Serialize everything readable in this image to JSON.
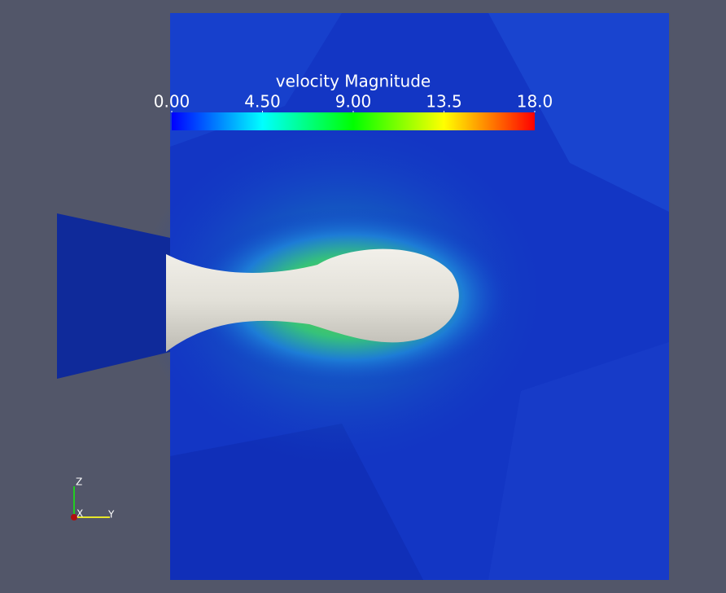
{
  "colorbar": {
    "title": "velocity Magnitude",
    "range": [
      0,
      18
    ],
    "ticks": [
      {
        "value": 0,
        "label": "0.00"
      },
      {
        "value": 4.5,
        "label": "4.50"
      },
      {
        "value": 9,
        "label": "9.00"
      },
      {
        "value": 13.5,
        "label": "13.5"
      },
      {
        "value": 18,
        "label": "18.0"
      }
    ]
  },
  "axes": {
    "z": "Z",
    "x": "X",
    "y": "Y"
  }
}
